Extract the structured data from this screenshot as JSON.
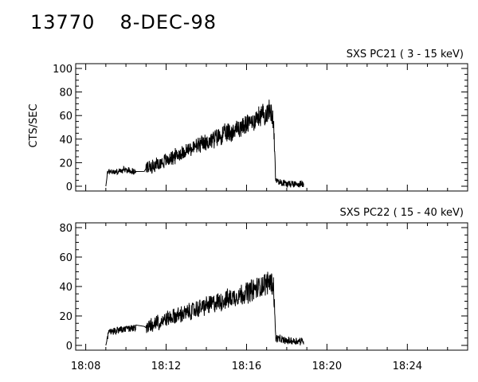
{
  "header": {
    "event_id": "13770",
    "date": "8-DEC-98"
  },
  "chart_data": [
    {
      "type": "line",
      "title": "SXS PC21  (  3 - 15 keV)",
      "ylabel": "CTS/SEC",
      "xlabel": "",
      "xlim_min": [
        1807.5,
        1827
      ],
      "ylim": [
        0,
        100
      ],
      "yticks": [
        "0",
        "20",
        "40",
        "60",
        "80",
        "100"
      ],
      "xticks": [
        "18:08",
        "18:12",
        "18:16",
        "18:20",
        "18:24"
      ],
      "grid": false,
      "segments": [
        {
          "t0": 1809.0,
          "t1": 1809.0,
          "y0": 0,
          "y1": 0
        },
        {
          "t0": 1809.0,
          "t1": 1809.08,
          "y0": 0,
          "y1": 13
        },
        {
          "t0": 1809.08,
          "t1": 1810.85,
          "y0": 12,
          "y1": 12
        },
        {
          "t0": 1810.85,
          "t1": 1811.0,
          "y0": 11,
          "y1": 15
        },
        {
          "t0": 1811.0,
          "t1": 1817.25,
          "y0": 15,
          "y1": 64
        },
        {
          "t0": 1817.25,
          "t1": 1817.4,
          "y0": 64,
          "y1": 5
        },
        {
          "t0": 1817.4,
          "t1": 1818.85,
          "y0": 2,
          "y1": 2
        }
      ],
      "series": [
        {
          "values_description_points": [
            [
              1809.0,
              0
            ],
            [
              1809.1,
              13
            ],
            [
              1809.5,
              12
            ],
            [
              1810.0,
              14
            ],
            [
              1810.5,
              12
            ],
            [
              1810.85,
              11
            ],
            [
              1811.0,
              15
            ],
            [
              1812.0,
              22
            ],
            [
              1813.0,
              30
            ],
            [
              1814.0,
              37
            ],
            [
              1815.0,
              45
            ],
            [
              1816.0,
              52
            ],
            [
              1816.7,
              60
            ],
            [
              1817.2,
              64
            ],
            [
              1817.35,
              55
            ],
            [
              1817.45,
              5
            ],
            [
              1818.0,
              2
            ],
            [
              1818.85,
              2
            ]
          ],
          "noise": 7
        }
      ]
    },
    {
      "type": "line",
      "title": "SXS PC22  ( 15 - 40 keV)",
      "ylabel": "",
      "xlabel": "",
      "xlim_min": [
        1807.5,
        1827
      ],
      "ylim": [
        0,
        80
      ],
      "yticks": [
        "0",
        "20",
        "40",
        "60",
        "80"
      ],
      "xticks": [
        "18:08",
        "18:12",
        "18:16",
        "18:20",
        "18:24"
      ],
      "grid": false,
      "series": [
        {
          "values_description_points": [
            [
              1809.0,
              0
            ],
            [
              1809.15,
              9
            ],
            [
              1809.5,
              10
            ],
            [
              1810.0,
              11
            ],
            [
              1810.5,
              12
            ],
            [
              1810.9,
              13
            ],
            [
              1811.0,
              12
            ],
            [
              1812.0,
              18
            ],
            [
              1813.0,
              22
            ],
            [
              1814.0,
              27
            ],
            [
              1815.0,
              31
            ],
            [
              1816.0,
              36
            ],
            [
              1816.7,
              40
            ],
            [
              1817.2,
              44
            ],
            [
              1817.35,
              40
            ],
            [
              1817.45,
              5
            ],
            [
              1818.0,
              3
            ],
            [
              1818.85,
              3
            ]
          ],
          "noise": 6
        }
      ]
    }
  ]
}
